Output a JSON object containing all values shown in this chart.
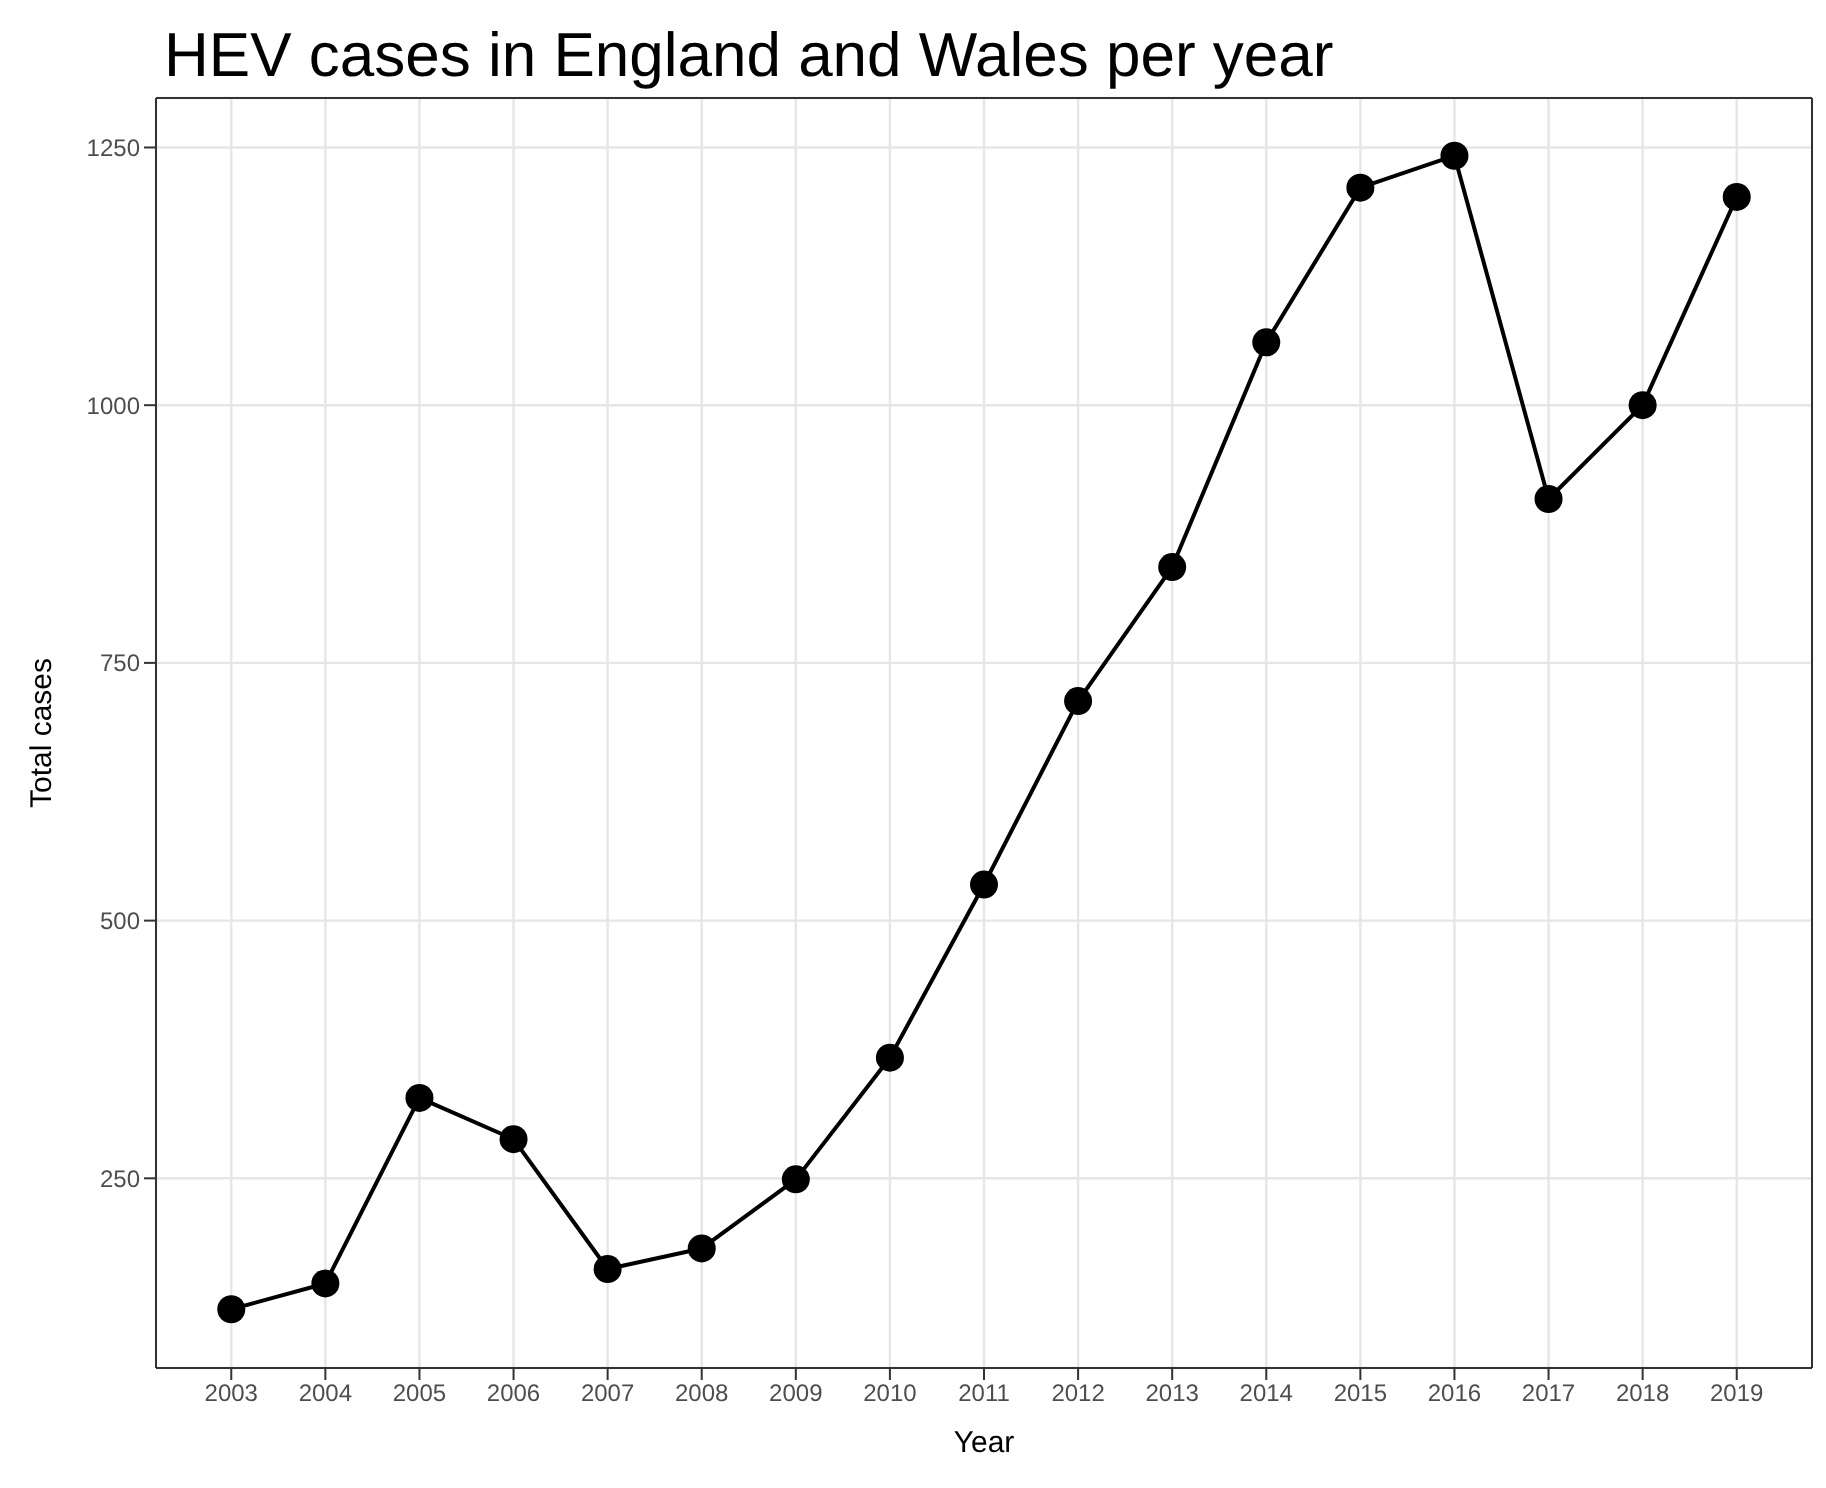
{
  "chart_data": {
    "type": "line",
    "title": "HEV cases in England and Wales per year",
    "xlabel": "Year",
    "ylabel": "Total cases",
    "x": [
      2003,
      2004,
      2005,
      2006,
      2007,
      2008,
      2009,
      2010,
      2011,
      2012,
      2013,
      2014,
      2015,
      2016,
      2017,
      2018,
      2019
    ],
    "series": [
      {
        "color": "#000000",
        "values": [
          123,
          148,
          328,
          288,
          162,
          182,
          249,
          367,
          535,
          713,
          843,
          1061,
          1211,
          1242,
          909,
          1000,
          1202
        ]
      }
    ],
    "xlim": [
      2002.2,
      2019.8
    ],
    "xticks": [
      2003,
      2004,
      2005,
      2006,
      2007,
      2008,
      2009,
      2010,
      2011,
      2012,
      2013,
      2014,
      2015,
      2016,
      2017,
      2018,
      2019
    ],
    "ylim": [
      66,
      1298
    ],
    "yticks": [
      250,
      500,
      750,
      1000,
      1250
    ],
    "grid": true,
    "marker": "circle",
    "line_style": "solid"
  }
}
